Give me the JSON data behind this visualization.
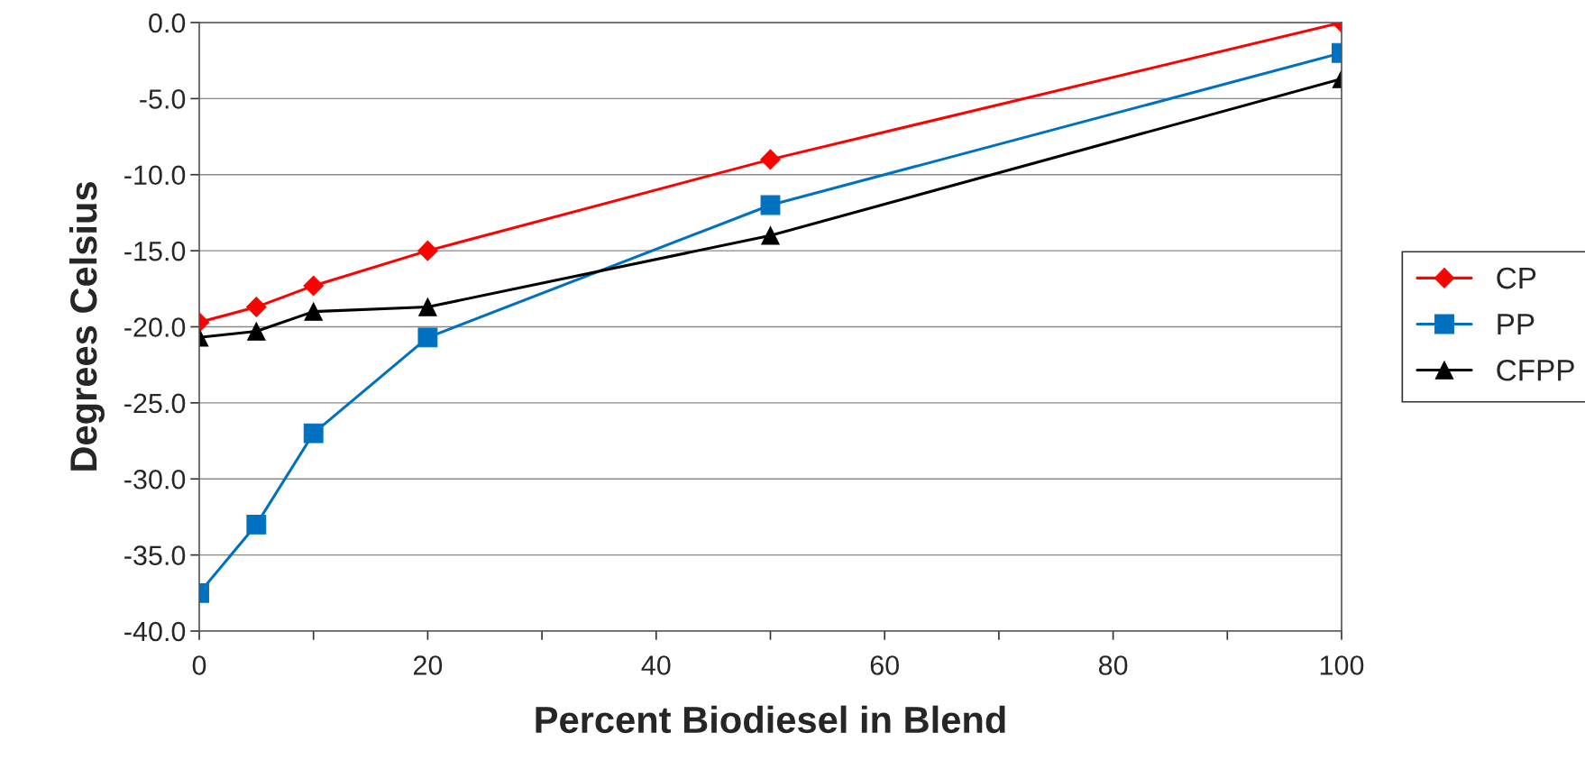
{
  "chart_data": {
    "type": "line",
    "xlabel": "Percent Biodiesel in Blend",
    "ylabel": "Degrees Celsius",
    "x": [
      0,
      5,
      10,
      20,
      50,
      100
    ],
    "series": [
      {
        "name": "CP",
        "color": "#ff0000",
        "marker": "diamond",
        "values": [
          -19.7,
          -18.7,
          -17.3,
          -15.0,
          -9.0,
          0.0
        ]
      },
      {
        "name": "PP",
        "color": "#0070c0",
        "marker": "square",
        "values": [
          -37.5,
          -33.0,
          -27.0,
          -20.7,
          -12.0,
          -2.0
        ]
      },
      {
        "name": "CFPP",
        "color": "#000000",
        "marker": "triangle",
        "values": [
          -20.7,
          -20.3,
          -19.0,
          -18.7,
          -14.0,
          -3.7
        ]
      }
    ],
    "xlim": [
      0,
      100
    ],
    "xticks": [
      0,
      {
        "value": 10,
        "label": null
      },
      20,
      {
        "value": 30,
        "label": null
      },
      40,
      {
        "value": 50,
        "label": null
      },
      60,
      {
        "value": 70,
        "label": null
      },
      80,
      {
        "value": 90,
        "label": null
      },
      100
    ],
    "ylim": [
      -40,
      0
    ],
    "yticks": [
      {
        "value": -40,
        "label": "-40.0"
      },
      {
        "value": -35,
        "label": "-35.0"
      },
      {
        "value": -30,
        "label": "-30.0"
      },
      {
        "value": -25,
        "label": "-25.0"
      },
      {
        "value": -20,
        "label": "-20.0"
      },
      {
        "value": -15,
        "label": "-15.0"
      },
      {
        "value": -10,
        "label": "-10.0"
      },
      {
        "value": -5,
        "label": "-5.0"
      },
      {
        "value": 0,
        "label": "0.0"
      }
    ],
    "grid": "y",
    "legend": "right",
    "line_style": "solid"
  }
}
